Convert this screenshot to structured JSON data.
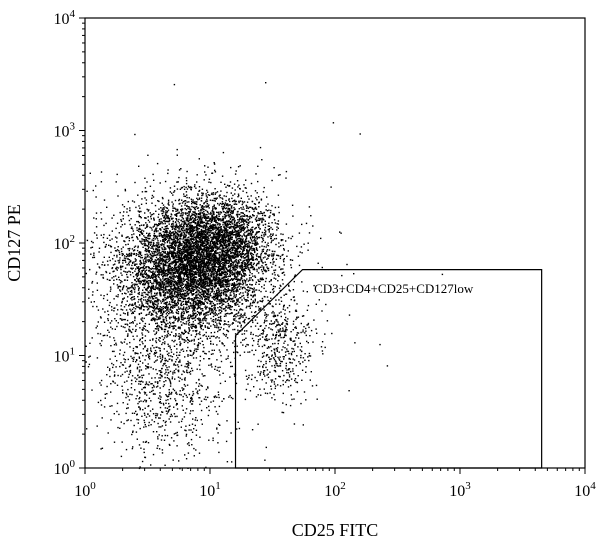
{
  "chart_data": {
    "type": "scatter",
    "scale": "log",
    "title": "",
    "xlabel": "CD25 FITC",
    "ylabel": "CD127 PE",
    "xlim": [
      1,
      10000
    ],
    "ylim": [
      1,
      10000
    ],
    "x_ticks": [
      {
        "value": 1,
        "base": "10",
        "exp": "0"
      },
      {
        "value": 10,
        "base": "10",
        "exp": "1"
      },
      {
        "value": 100,
        "base": "10",
        "exp": "2"
      },
      {
        "value": 1000,
        "base": "10",
        "exp": "3"
      },
      {
        "value": 10000,
        "base": "10",
        "exp": "4"
      }
    ],
    "y_ticks": [
      {
        "value": 1,
        "base": "10",
        "exp": "0"
      },
      {
        "value": 10,
        "base": "10",
        "exp": "1"
      },
      {
        "value": 100,
        "base": "10",
        "exp": "2"
      },
      {
        "value": 1000,
        "base": "10",
        "exp": "3"
      },
      {
        "value": 10000,
        "base": "10",
        "exp": "4"
      }
    ],
    "populations": [
      {
        "center": [
          7,
          60
        ],
        "spread_log": [
          0.28,
          0.28
        ],
        "count": 5500
      },
      {
        "center": [
          12,
          110
        ],
        "spread_log": [
          0.22,
          0.2
        ],
        "count": 1800
      },
      {
        "center": [
          4,
          6
        ],
        "spread_log": [
          0.25,
          0.4
        ],
        "count": 900
      },
      {
        "center": [
          35,
          12
        ],
        "spread_log": [
          0.15,
          0.25
        ],
        "count": 450
      },
      {
        "center": [
          4,
          40
        ],
        "spread_log": [
          0.6,
          0.6
        ],
        "count": 700
      }
    ],
    "gate": {
      "label": "CD3+CD4+CD25+CD127low",
      "polygon": [
        [
          16,
          1
        ],
        [
          16,
          15
        ],
        [
          55,
          58
        ],
        [
          4500,
          58
        ],
        [
          4500,
          1
        ]
      ]
    }
  }
}
